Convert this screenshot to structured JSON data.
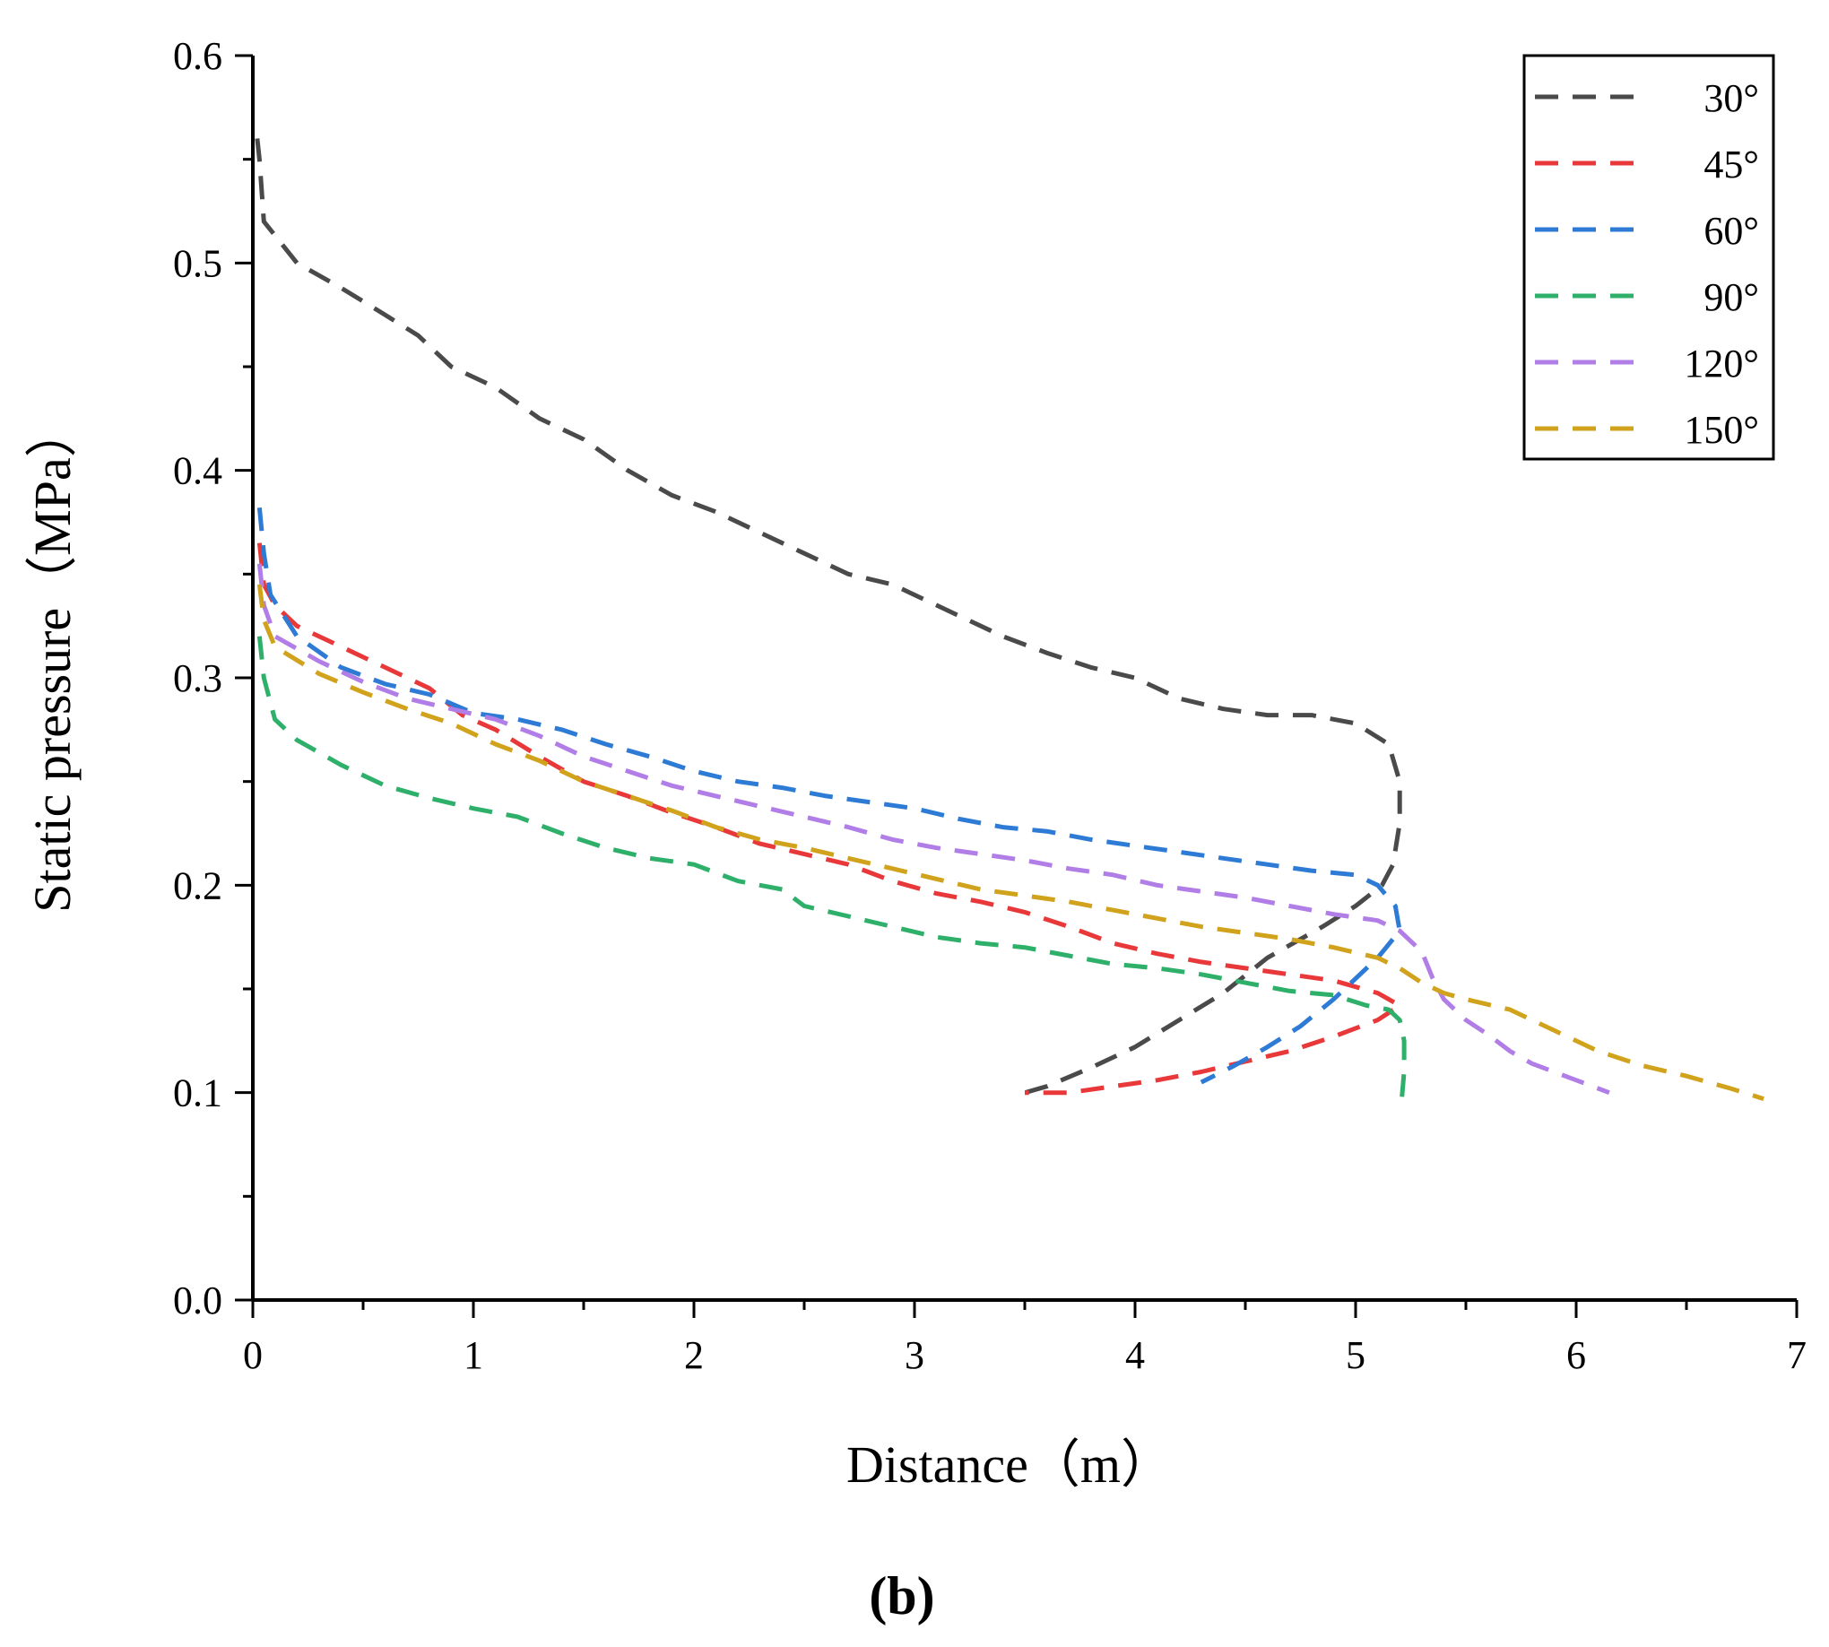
{
  "chart_data": {
    "type": "line",
    "title": "",
    "xlabel": "Distance（m）",
    "ylabel": "Static pressure（MPa）",
    "xlim": [
      0,
      7
    ],
    "ylim": [
      0.0,
      0.6
    ],
    "x_ticks": [
      "0",
      "1",
      "2",
      "3",
      "4",
      "5",
      "6",
      "7"
    ],
    "y_ticks": [
      "0.0",
      "0.1",
      "0.2",
      "0.3",
      "0.4",
      "0.5",
      "0.6"
    ],
    "legend_position": "top-right",
    "panel_label": "(b)",
    "series": [
      {
        "name": "30°",
        "color": "#4a4a4a",
        "points": [
          [
            0.02,
            0.56
          ],
          [
            0.03,
            0.55
          ],
          [
            0.05,
            0.52
          ],
          [
            0.2,
            0.5
          ],
          [
            0.4,
            0.488
          ],
          [
            0.6,
            0.475
          ],
          [
            0.75,
            0.465
          ],
          [
            0.9,
            0.45
          ],
          [
            1.1,
            0.44
          ],
          [
            1.3,
            0.425
          ],
          [
            1.5,
            0.415
          ],
          [
            1.7,
            0.4
          ],
          [
            1.9,
            0.388
          ],
          [
            2.1,
            0.38
          ],
          [
            2.3,
            0.37
          ],
          [
            2.5,
            0.36
          ],
          [
            2.7,
            0.35
          ],
          [
            2.9,
            0.345
          ],
          [
            3.0,
            0.34
          ],
          [
            3.2,
            0.33
          ],
          [
            3.4,
            0.32
          ],
          [
            3.6,
            0.312
          ],
          [
            3.8,
            0.305
          ],
          [
            4.0,
            0.3
          ],
          [
            4.2,
            0.29
          ],
          [
            4.4,
            0.285
          ],
          [
            4.6,
            0.282
          ],
          [
            4.8,
            0.282
          ],
          [
            5.0,
            0.278
          ],
          [
            5.15,
            0.268
          ],
          [
            5.2,
            0.25
          ],
          [
            5.2,
            0.23
          ],
          [
            5.17,
            0.21
          ],
          [
            5.12,
            0.2
          ],
          [
            5.0,
            0.19
          ],
          [
            4.85,
            0.18
          ],
          [
            4.6,
            0.165
          ],
          [
            4.4,
            0.148
          ],
          [
            4.2,
            0.135
          ],
          [
            4.0,
            0.122
          ],
          [
            3.8,
            0.112
          ],
          [
            3.6,
            0.103
          ],
          [
            3.5,
            0.1
          ]
        ]
      },
      {
        "name": "45°",
        "color": "#e8383a",
        "points": [
          [
            0.03,
            0.365
          ],
          [
            0.05,
            0.345
          ],
          [
            0.1,
            0.335
          ],
          [
            0.2,
            0.325
          ],
          [
            0.4,
            0.315
          ],
          [
            0.6,
            0.305
          ],
          [
            0.8,
            0.295
          ],
          [
            0.95,
            0.282
          ],
          [
            1.1,
            0.275
          ],
          [
            1.3,
            0.262
          ],
          [
            1.5,
            0.25
          ],
          [
            1.7,
            0.243
          ],
          [
            1.9,
            0.235
          ],
          [
            2.1,
            0.228
          ],
          [
            2.3,
            0.22
          ],
          [
            2.5,
            0.215
          ],
          [
            2.7,
            0.21
          ],
          [
            2.9,
            0.202
          ],
          [
            3.1,
            0.196
          ],
          [
            3.3,
            0.192
          ],
          [
            3.5,
            0.187
          ],
          [
            3.7,
            0.18
          ],
          [
            3.9,
            0.172
          ],
          [
            4.1,
            0.167
          ],
          [
            4.3,
            0.163
          ],
          [
            4.5,
            0.16
          ],
          [
            4.7,
            0.157
          ],
          [
            4.9,
            0.154
          ],
          [
            5.1,
            0.148
          ],
          [
            5.2,
            0.142
          ],
          [
            5.1,
            0.135
          ],
          [
            4.9,
            0.127
          ],
          [
            4.7,
            0.12
          ],
          [
            4.5,
            0.115
          ],
          [
            4.3,
            0.11
          ],
          [
            4.1,
            0.106
          ],
          [
            3.9,
            0.103
          ],
          [
            3.7,
            0.1
          ],
          [
            3.5,
            0.1
          ]
        ]
      },
      {
        "name": "60°",
        "color": "#2e7bd6",
        "points": [
          [
            0.03,
            0.382
          ],
          [
            0.05,
            0.36
          ],
          [
            0.08,
            0.34
          ],
          [
            0.2,
            0.32
          ],
          [
            0.4,
            0.305
          ],
          [
            0.6,
            0.297
          ],
          [
            0.8,
            0.292
          ],
          [
            1.0,
            0.283
          ],
          [
            1.2,
            0.28
          ],
          [
            1.4,
            0.275
          ],
          [
            1.6,
            0.268
          ],
          [
            1.8,
            0.262
          ],
          [
            2.0,
            0.255
          ],
          [
            2.2,
            0.25
          ],
          [
            2.4,
            0.247
          ],
          [
            2.6,
            0.243
          ],
          [
            2.8,
            0.24
          ],
          [
            3.0,
            0.237
          ],
          [
            3.2,
            0.232
          ],
          [
            3.4,
            0.228
          ],
          [
            3.6,
            0.226
          ],
          [
            3.8,
            0.222
          ],
          [
            4.0,
            0.219
          ],
          [
            4.2,
            0.216
          ],
          [
            4.4,
            0.213
          ],
          [
            4.6,
            0.21
          ],
          [
            4.8,
            0.207
          ],
          [
            5.0,
            0.205
          ],
          [
            5.1,
            0.2
          ],
          [
            5.18,
            0.19
          ],
          [
            5.2,
            0.178
          ],
          [
            5.1,
            0.165
          ],
          [
            5.0,
            0.155
          ],
          [
            4.9,
            0.145
          ],
          [
            4.75,
            0.132
          ],
          [
            4.6,
            0.122
          ],
          [
            4.45,
            0.113
          ],
          [
            4.3,
            0.105
          ]
        ]
      },
      {
        "name": "90°",
        "color": "#2eb06a",
        "points": [
          [
            0.03,
            0.32
          ],
          [
            0.05,
            0.3
          ],
          [
            0.1,
            0.28
          ],
          [
            0.2,
            0.27
          ],
          [
            0.4,
            0.258
          ],
          [
            0.6,
            0.248
          ],
          [
            0.8,
            0.242
          ],
          [
            1.0,
            0.237
          ],
          [
            1.2,
            0.233
          ],
          [
            1.4,
            0.225
          ],
          [
            1.6,
            0.218
          ],
          [
            1.8,
            0.213
          ],
          [
            2.0,
            0.21
          ],
          [
            2.2,
            0.202
          ],
          [
            2.4,
            0.198
          ],
          [
            2.5,
            0.19
          ],
          [
            2.7,
            0.185
          ],
          [
            2.9,
            0.18
          ],
          [
            3.1,
            0.175
          ],
          [
            3.3,
            0.172
          ],
          [
            3.5,
            0.17
          ],
          [
            3.7,
            0.166
          ],
          [
            3.9,
            0.162
          ],
          [
            4.1,
            0.16
          ],
          [
            4.3,
            0.157
          ],
          [
            4.5,
            0.153
          ],
          [
            4.7,
            0.149
          ],
          [
            4.9,
            0.147
          ],
          [
            5.05,
            0.142
          ],
          [
            5.15,
            0.14
          ],
          [
            5.2,
            0.135
          ],
          [
            5.22,
            0.125
          ],
          [
            5.22,
            0.11
          ],
          [
            5.21,
            0.098
          ]
        ]
      },
      {
        "name": "120°",
        "color": "#b07ee6",
        "points": [
          [
            0.03,
            0.355
          ],
          [
            0.05,
            0.335
          ],
          [
            0.1,
            0.32
          ],
          [
            0.3,
            0.308
          ],
          [
            0.5,
            0.298
          ],
          [
            0.7,
            0.29
          ],
          [
            0.9,
            0.285
          ],
          [
            1.1,
            0.28
          ],
          [
            1.3,
            0.272
          ],
          [
            1.5,
            0.262
          ],
          [
            1.7,
            0.255
          ],
          [
            1.9,
            0.248
          ],
          [
            2.1,
            0.243
          ],
          [
            2.3,
            0.238
          ],
          [
            2.5,
            0.233
          ],
          [
            2.7,
            0.228
          ],
          [
            2.9,
            0.222
          ],
          [
            3.1,
            0.218
          ],
          [
            3.3,
            0.215
          ],
          [
            3.5,
            0.212
          ],
          [
            3.7,
            0.208
          ],
          [
            3.9,
            0.205
          ],
          [
            4.1,
            0.2
          ],
          [
            4.3,
            0.197
          ],
          [
            4.5,
            0.194
          ],
          [
            4.7,
            0.19
          ],
          [
            4.9,
            0.186
          ],
          [
            5.1,
            0.183
          ],
          [
            5.2,
            0.178
          ],
          [
            5.3,
            0.168
          ],
          [
            5.35,
            0.155
          ],
          [
            5.4,
            0.145
          ],
          [
            5.5,
            0.135
          ],
          [
            5.6,
            0.128
          ],
          [
            5.7,
            0.12
          ],
          [
            5.8,
            0.114
          ],
          [
            5.95,
            0.108
          ],
          [
            6.05,
            0.104
          ],
          [
            6.15,
            0.1
          ]
        ]
      },
      {
        "name": "150°",
        "color": "#d1a21c",
        "points": [
          [
            0.03,
            0.345
          ],
          [
            0.05,
            0.328
          ],
          [
            0.1,
            0.315
          ],
          [
            0.3,
            0.302
          ],
          [
            0.5,
            0.293
          ],
          [
            0.7,
            0.285
          ],
          [
            0.9,
            0.278
          ],
          [
            1.1,
            0.268
          ],
          [
            1.3,
            0.26
          ],
          [
            1.5,
            0.25
          ],
          [
            1.7,
            0.243
          ],
          [
            1.9,
            0.236
          ],
          [
            2.1,
            0.228
          ],
          [
            2.3,
            0.222
          ],
          [
            2.5,
            0.218
          ],
          [
            2.7,
            0.213
          ],
          [
            2.9,
            0.208
          ],
          [
            3.1,
            0.203
          ],
          [
            3.3,
            0.198
          ],
          [
            3.5,
            0.195
          ],
          [
            3.7,
            0.192
          ],
          [
            3.9,
            0.188
          ],
          [
            4.1,
            0.184
          ],
          [
            4.3,
            0.18
          ],
          [
            4.5,
            0.177
          ],
          [
            4.7,
            0.174
          ],
          [
            4.9,
            0.17
          ],
          [
            5.1,
            0.165
          ],
          [
            5.2,
            0.16
          ],
          [
            5.3,
            0.153
          ],
          [
            5.4,
            0.148
          ],
          [
            5.5,
            0.145
          ],
          [
            5.7,
            0.14
          ],
          [
            5.9,
            0.13
          ],
          [
            6.1,
            0.12
          ],
          [
            6.3,
            0.113
          ],
          [
            6.5,
            0.108
          ],
          [
            6.7,
            0.102
          ],
          [
            6.85,
            0.097
          ]
        ]
      }
    ]
  }
}
